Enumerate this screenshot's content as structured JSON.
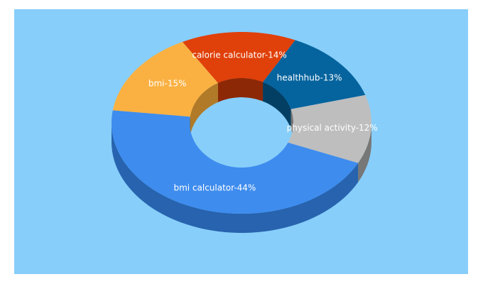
{
  "chart_data": {
    "type": "pie",
    "variant": "3d-donut",
    "background": "#87CEFA",
    "slices": [
      {
        "label": "calorie calculator",
        "value": 14,
        "color": "#E0400A",
        "side": "#8C2806",
        "text": "calorie calculator-14%"
      },
      {
        "label": "healthhub",
        "value": 13,
        "color": "#05649E",
        "side": "#033F63",
        "text": "healthhub-13%"
      },
      {
        "label": "physical activity",
        "value": 12,
        "color": "#BEBEBE",
        "side": "#777777",
        "text": "physical activity-12%"
      },
      {
        "label": "bmi calculator",
        "value": 44,
        "color": "#3E8CEE",
        "side": "#2763AE",
        "text": "bmi calculator-44%"
      },
      {
        "label": "bmi",
        "value": 15,
        "color": "#FAB142",
        "side": "#B07A28",
        "text": "bmi-15%"
      }
    ]
  }
}
